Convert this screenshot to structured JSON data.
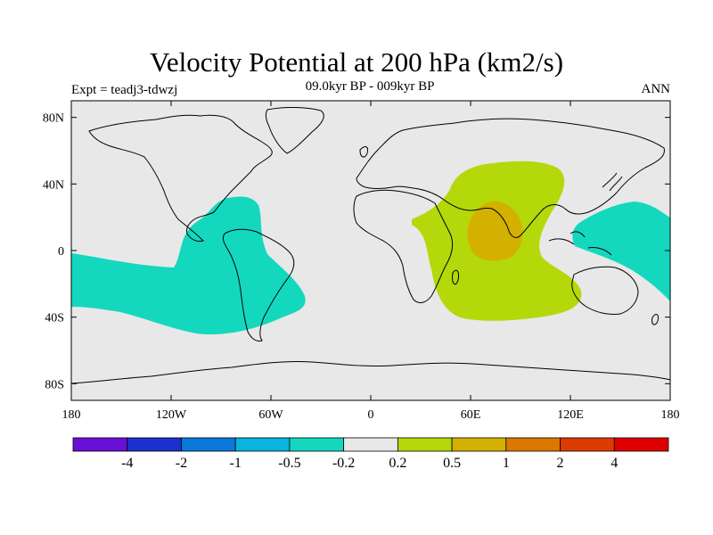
{
  "title": "Velocity Potential at 200 hPa (km2/s)",
  "subtitle": "09.0kyr BP - 009kyr BP",
  "experiment_label": "Expt = teadj3-tdwzj",
  "season_label": "ANN",
  "map": {
    "projection": "cylindrical-equidistant",
    "lon_range": [
      -180,
      180
    ],
    "lat_range": [
      -90,
      90
    ],
    "x_ticks": [
      {
        "value": -180,
        "label": "180"
      },
      {
        "value": -120,
        "label": "120W"
      },
      {
        "value": -60,
        "label": "60W"
      },
      {
        "value": 0,
        "label": "0"
      },
      {
        "value": 60,
        "label": "60E"
      },
      {
        "value": 120,
        "label": "120E"
      },
      {
        "value": 180,
        "label": "180"
      }
    ],
    "y_ticks": [
      {
        "value": 80,
        "label": "80N"
      },
      {
        "value": 40,
        "label": "40N"
      },
      {
        "value": 0,
        "label": "0"
      },
      {
        "value": -40,
        "label": "40S"
      },
      {
        "value": -80,
        "label": "80S"
      }
    ],
    "background_color": "#e8e8e8"
  },
  "colorbar": {
    "colors": [
      "#6a0fd6",
      "#1e2fd0",
      "#0a78d8",
      "#0ab4e0",
      "#13d8be",
      "#e8e8e8",
      "#b4d80a",
      "#d4b000",
      "#dc7800",
      "#dc3c00",
      "#e00000"
    ],
    "labels": [
      "-4",
      "-2",
      "-1",
      "-0.5",
      "-0.2",
      "0.2",
      "0.5",
      "1",
      "2",
      "4"
    ]
  }
}
